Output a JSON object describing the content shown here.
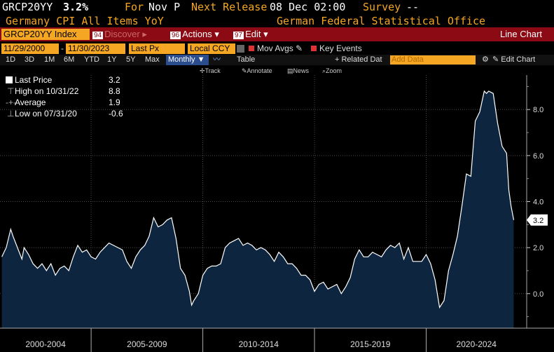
{
  "header": {
    "ticker": "GRCP20YY",
    "last": "3.2%",
    "for_label": "For",
    "for_value": "Nov P",
    "next_release_label": "Next Release",
    "next_release_value": "08 Dec 02:00",
    "survey_label": "Survey",
    "survey_value": "--",
    "description": "Germany CPI All Items YoY",
    "source": "German Federal Statistical Office"
  },
  "toolbar": {
    "ticker_field": "GRCP20YY Index",
    "discover_num": "94",
    "discover": "Discover",
    "actions_num": "96",
    "actions": "Actions",
    "edit_num": "97",
    "edit": "Edit",
    "chart_type": "Line Chart"
  },
  "controls": {
    "start_date": "11/29/2000",
    "end_date": "11/30/2023",
    "field": "Last Px",
    "currency": "Local CCY",
    "mov_avgs": "Mov Avgs",
    "key_events": "Key Events"
  },
  "periods": {
    "items": [
      "1D",
      "3D",
      "1M",
      "6M",
      "YTD",
      "1Y",
      "5Y",
      "Max"
    ],
    "frequency": "Monthly",
    "table": "Table",
    "related_data": "Related Dat",
    "add_data_placeholder": "Add Data",
    "edit_chart": "Edit Chart"
  },
  "tools": {
    "track": "Track",
    "annotate": "Annotate",
    "news": "News",
    "zoom": "Zoom"
  },
  "legend": {
    "last_label": "Last Price",
    "last_value": "3.2",
    "high_label": "High on 10/31/22",
    "high_value": "8.8",
    "avg_label": "Average",
    "avg_value": "1.9",
    "low_label": "Low on 07/31/20",
    "low_value": "-0.6"
  },
  "colors": {
    "fill": "#0e2540",
    "line": "#ffffff",
    "accent": "#f5a623",
    "redbar": "#8b0a14"
  },
  "chart_data": {
    "type": "area",
    "ylim": [
      -1.5,
      9.5
    ],
    "yticks": [
      0.0,
      2.0,
      4.0,
      6.0,
      8.0
    ],
    "ytick_labels": [
      "0.0",
      "2.0",
      "4.0",
      "6.0",
      "8.0"
    ],
    "last_value_label": "3.2",
    "xlim": [
      2000.92,
      2024.5
    ],
    "x_bands": [
      {
        "label": "2000-2004",
        "from": 2000.92,
        "to": 2005.0
      },
      {
        "label": "2005-2009",
        "from": 2005.0,
        "to": 2010.0
      },
      {
        "label": "2010-2014",
        "from": 2010.0,
        "to": 2015.0
      },
      {
        "label": "2015-2019",
        "from": 2015.0,
        "to": 2020.0
      },
      {
        "label": "2020-2024",
        "from": 2020.0,
        "to": 2024.5
      }
    ],
    "grid": true,
    "series": [
      {
        "points": [
          [
            2001.0,
            1.6
          ],
          [
            2001.2,
            2.0
          ],
          [
            2001.4,
            2.8
          ],
          [
            2001.5,
            2.5
          ],
          [
            2001.7,
            2.0
          ],
          [
            2001.9,
            1.5
          ],
          [
            2002.0,
            2.0
          ],
          [
            2002.2,
            1.7
          ],
          [
            2002.4,
            1.3
          ],
          [
            2002.6,
            1.1
          ],
          [
            2002.8,
            1.3
          ],
          [
            2003.0,
            1.0
          ],
          [
            2003.2,
            1.3
          ],
          [
            2003.4,
            0.8
          ],
          [
            2003.6,
            1.1
          ],
          [
            2003.8,
            1.2
          ],
          [
            2004.0,
            1.0
          ],
          [
            2004.2,
            1.6
          ],
          [
            2004.4,
            2.1
          ],
          [
            2004.6,
            1.8
          ],
          [
            2004.8,
            1.9
          ],
          [
            2005.0,
            1.6
          ],
          [
            2005.2,
            1.5
          ],
          [
            2005.4,
            1.8
          ],
          [
            2005.6,
            2.0
          ],
          [
            2005.8,
            2.2
          ],
          [
            2006.0,
            2.1
          ],
          [
            2006.2,
            2.0
          ],
          [
            2006.4,
            1.9
          ],
          [
            2006.6,
            1.4
          ],
          [
            2006.8,
            1.1
          ],
          [
            2007.0,
            1.6
          ],
          [
            2007.2,
            1.9
          ],
          [
            2007.4,
            2.1
          ],
          [
            2007.6,
            2.5
          ],
          [
            2007.8,
            3.3
          ],
          [
            2008.0,
            2.9
          ],
          [
            2008.2,
            3.0
          ],
          [
            2008.4,
            3.2
          ],
          [
            2008.6,
            3.3
          ],
          [
            2008.8,
            2.4
          ],
          [
            2009.0,
            1.1
          ],
          [
            2009.2,
            0.8
          ],
          [
            2009.4,
            0.1
          ],
          [
            2009.5,
            -0.5
          ],
          [
            2009.6,
            -0.3
          ],
          [
            2009.8,
            0.0
          ],
          [
            2010.0,
            0.8
          ],
          [
            2010.2,
            1.1
          ],
          [
            2010.4,
            1.2
          ],
          [
            2010.6,
            1.2
          ],
          [
            2010.8,
            1.3
          ],
          [
            2011.0,
            2.0
          ],
          [
            2011.2,
            2.2
          ],
          [
            2011.4,
            2.3
          ],
          [
            2011.6,
            2.4
          ],
          [
            2011.8,
            2.1
          ],
          [
            2012.0,
            2.2
          ],
          [
            2012.2,
            2.1
          ],
          [
            2012.4,
            1.9
          ],
          [
            2012.6,
            2.0
          ],
          [
            2012.8,
            1.9
          ],
          [
            2013.0,
            1.7
          ],
          [
            2013.2,
            1.4
          ],
          [
            2013.4,
            1.8
          ],
          [
            2013.6,
            1.6
          ],
          [
            2013.8,
            1.3
          ],
          [
            2014.0,
            1.3
          ],
          [
            2014.2,
            1.1
          ],
          [
            2014.4,
            0.8
          ],
          [
            2014.6,
            0.8
          ],
          [
            2014.8,
            0.6
          ],
          [
            2015.0,
            0.1
          ],
          [
            2015.2,
            0.4
          ],
          [
            2015.4,
            0.5
          ],
          [
            2015.6,
            0.2
          ],
          [
            2015.8,
            0.3
          ],
          [
            2016.0,
            0.4
          ],
          [
            2016.2,
            0.0
          ],
          [
            2016.4,
            0.3
          ],
          [
            2016.6,
            0.7
          ],
          [
            2016.8,
            1.5
          ],
          [
            2017.0,
            1.9
          ],
          [
            2017.2,
            1.6
          ],
          [
            2017.4,
            1.6
          ],
          [
            2017.6,
            1.8
          ],
          [
            2017.8,
            1.7
          ],
          [
            2018.0,
            1.6
          ],
          [
            2018.2,
            1.9
          ],
          [
            2018.4,
            2.1
          ],
          [
            2018.6,
            2.0
          ],
          [
            2018.8,
            2.2
          ],
          [
            2019.0,
            1.5
          ],
          [
            2019.2,
            2.0
          ],
          [
            2019.4,
            1.4
          ],
          [
            2019.6,
            1.4
          ],
          [
            2019.8,
            1.4
          ],
          [
            2020.0,
            1.7
          ],
          [
            2020.2,
            1.3
          ],
          [
            2020.4,
            0.6
          ],
          [
            2020.6,
            -0.6
          ],
          [
            2020.8,
            -0.3
          ],
          [
            2021.0,
            1.0
          ],
          [
            2021.2,
            1.7
          ],
          [
            2021.4,
            2.5
          ],
          [
            2021.6,
            3.8
          ],
          [
            2021.8,
            5.2
          ],
          [
            2022.0,
            5.1
          ],
          [
            2022.2,
            7.5
          ],
          [
            2022.4,
            7.9
          ],
          [
            2022.6,
            8.8
          ],
          [
            2022.7,
            8.7
          ],
          [
            2022.8,
            8.8
          ],
          [
            2023.0,
            8.7
          ],
          [
            2023.2,
            7.4
          ],
          [
            2023.4,
            6.4
          ],
          [
            2023.6,
            6.1
          ],
          [
            2023.7,
            4.5
          ],
          [
            2023.8,
            3.8
          ],
          [
            2023.92,
            3.2
          ]
        ]
      }
    ]
  }
}
